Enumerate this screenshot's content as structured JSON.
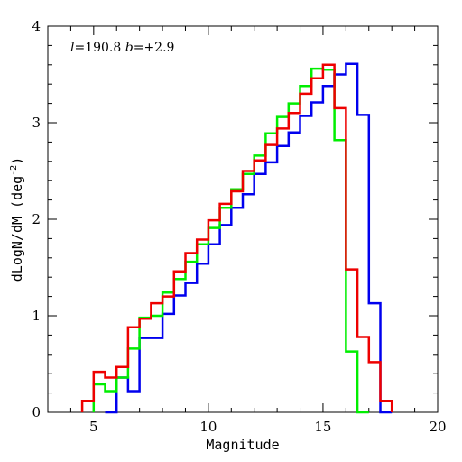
{
  "chart_data": {
    "type": "step",
    "xlabel": "Magnitude",
    "ylabel_main": "dLogN/dM (deg",
    "ylabel_sup": "-2",
    "ylabel_close": ")",
    "xlim": [
      3,
      20
    ],
    "ylim": [
      0,
      4
    ],
    "x_ticks_major": [
      "5",
      "10",
      "15",
      "20"
    ],
    "y_ticks_major": [
      "0",
      "1",
      "2",
      "3",
      "4"
    ],
    "annotation": {
      "l_symbol": "l",
      "l_value": "=190.8",
      "b_symbol": "b",
      "b_value": "=+2.9"
    },
    "series": [
      {
        "color": "#0000ee",
        "edges": [
          5.5,
          6.0,
          6.5,
          7.0,
          7.5,
          8.0,
          8.5,
          9.0,
          9.5,
          10.0,
          10.5,
          11.0,
          11.5,
          12.0,
          12.5,
          13.0,
          13.5,
          14.0,
          14.5,
          15.0,
          15.5,
          16.0,
          16.5,
          17.0,
          17.5,
          18.0
        ],
        "values": [
          0.0,
          0.36,
          0.22,
          0.77,
          0.77,
          1.02,
          1.21,
          1.34,
          1.54,
          1.74,
          1.94,
          2.12,
          2.26,
          2.47,
          2.59,
          2.76,
          2.9,
          3.07,
          3.21,
          3.38,
          3.5,
          3.61,
          3.08,
          1.13,
          0.0
        ]
      },
      {
        "color": "#00ee00",
        "edges": [
          5.0,
          5.5,
          6.0,
          6.5,
          7.0,
          7.5,
          8.0,
          8.5,
          9.0,
          9.5,
          10.0,
          10.5,
          11.0,
          11.5,
          12.0,
          12.5,
          13.0,
          13.5,
          14.0,
          14.5,
          15.0,
          15.5,
          16.0,
          16.5,
          17.0
        ],
        "values": [
          0.29,
          0.22,
          0.36,
          0.66,
          0.98,
          1.0,
          1.24,
          1.38,
          1.56,
          1.74,
          1.91,
          2.12,
          2.31,
          2.47,
          2.66,
          2.89,
          3.06,
          3.2,
          3.38,
          3.56,
          3.55,
          2.82,
          0.63,
          0.0
        ]
      },
      {
        "color": "#ee0000",
        "edges": [
          4.5,
          5.0,
          5.5,
          6.0,
          6.5,
          7.0,
          7.5,
          8.0,
          8.5,
          9.0,
          9.5,
          10.0,
          10.5,
          11.0,
          11.5,
          12.0,
          12.5,
          13.0,
          13.5,
          14.0,
          14.5,
          15.0,
          15.5,
          16.0,
          16.5,
          17.0,
          17.5,
          18.0
        ],
        "values": [
          0.12,
          0.42,
          0.36,
          0.47,
          0.88,
          0.97,
          1.13,
          1.2,
          1.46,
          1.65,
          1.79,
          1.99,
          2.16,
          2.29,
          2.5,
          2.61,
          2.77,
          2.94,
          3.1,
          3.3,
          3.46,
          3.6,
          3.15,
          1.48,
          0.78,
          0.52,
          0.12
        ]
      }
    ]
  }
}
